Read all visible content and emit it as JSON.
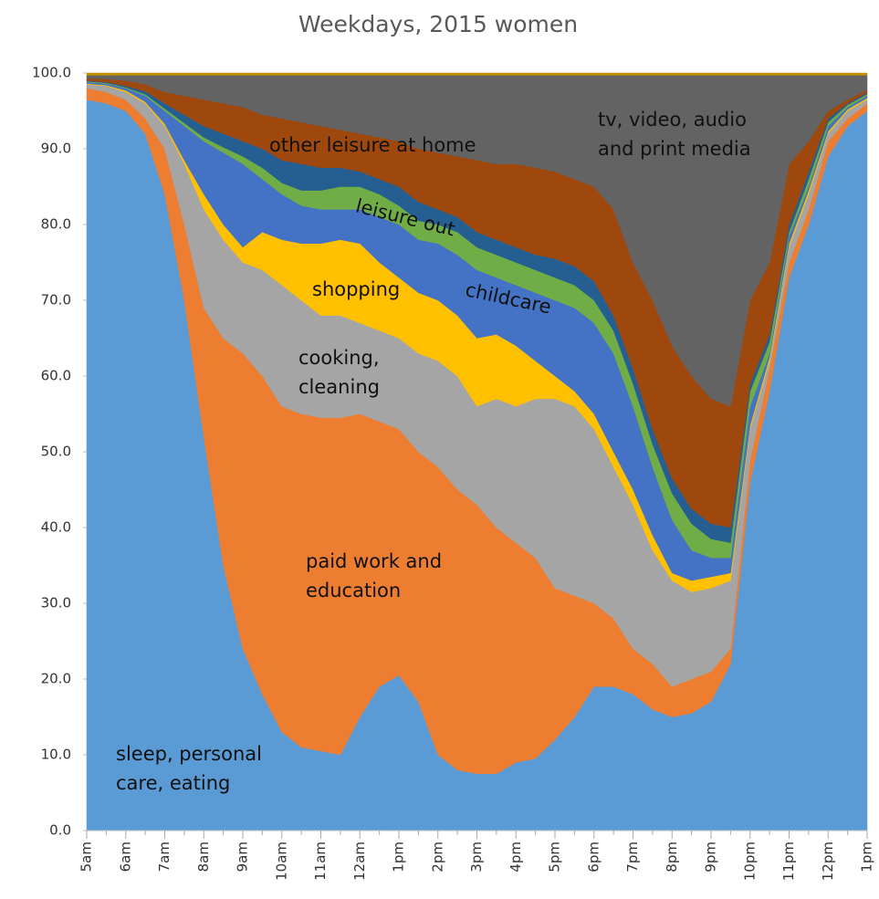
{
  "chart_data": {
    "type": "stacked_area",
    "title": "Weekdays, 2015 women",
    "categories": [
      "5am",
      null,
      "6am",
      null,
      "7am",
      null,
      "8am",
      null,
      "9am",
      null,
      "10am",
      null,
      "11am",
      null,
      "12am",
      null,
      "1pm",
      null,
      "2pm",
      null,
      "3pm",
      null,
      "4pm",
      null,
      "5pm",
      null,
      "6pm",
      null,
      "7pm",
      null,
      "8pm",
      null,
      "9pm",
      null,
      "10pm",
      null,
      "11pm",
      null,
      "12pm",
      null,
      "1pm"
    ],
    "ylim": [
      0,
      100
    ],
    "yticks": [
      {
        "value": 0,
        "label": "0.0"
      },
      {
        "value": 10,
        "label": "10.0"
      },
      {
        "value": 20,
        "label": "20.0"
      },
      {
        "value": 30,
        "label": "30.0"
      },
      {
        "value": 40,
        "label": "40.0"
      },
      {
        "value": 50,
        "label": "50.0"
      },
      {
        "value": 60,
        "label": "60.0"
      },
      {
        "value": 70,
        "label": "70.0"
      },
      {
        "value": 80,
        "label": "80.0"
      },
      {
        "value": 90,
        "label": "90.0"
      },
      {
        "value": 100,
        "label": "100.0"
      }
    ],
    "series": [
      {
        "name": "sleep, personal care, eating",
        "color": "#5b9bd5",
        "values": [
          96.5,
          96,
          95,
          92,
          84,
          70,
          52,
          35,
          24,
          18,
          13,
          11,
          10.5,
          10,
          15,
          19,
          20.5,
          17,
          10,
          8,
          7.5,
          7.5,
          9,
          9.5,
          12,
          15,
          19,
          19,
          18,
          16,
          15,
          15.5,
          17,
          22,
          46,
          58,
          73,
          80,
          89,
          93,
          95
        ]
      },
      {
        "name": "paid work and education",
        "color": "#ed7d31",
        "values": [
          1.5,
          1.5,
          1.5,
          2,
          6,
          10,
          17,
          30,
          39,
          42,
          43,
          44,
          44,
          44.5,
          40,
          35,
          32.5,
          33,
          38,
          37,
          35.5,
          32.5,
          29,
          26.5,
          20,
          16,
          11,
          9,
          6,
          6,
          4,
          4.5,
          4,
          2,
          3,
          3,
          2,
          2,
          2,
          1,
          1
        ]
      },
      {
        "name": "cooking, cleaning",
        "color": "#a5a5a5",
        "values": [
          0.5,
          0.8,
          1,
          2,
          3,
          8,
          13,
          13,
          12,
          14,
          16,
          15,
          13.5,
          13.5,
          12,
          12,
          12,
          13,
          14,
          15,
          13,
          17,
          18,
          21,
          25,
          25,
          23,
          20,
          19,
          15,
          14,
          11.5,
          11,
          9,
          4,
          1,
          2,
          2,
          1,
          1,
          0.5
        ]
      },
      {
        "name": "shopping",
        "color": "#ffc000",
        "values": [
          0.1,
          0.1,
          0.2,
          0.2,
          0.3,
          0.5,
          2,
          2,
          2,
          5,
          6,
          7.5,
          9.5,
          10,
          10.5,
          9,
          8,
          8,
          8,
          8,
          9,
          8.5,
          8,
          5,
          3,
          2,
          2,
          2,
          2,
          2,
          1,
          1.5,
          1.5,
          1,
          0.5,
          0.5,
          0.5,
          0.5,
          0.3,
          0.2,
          0.2
        ]
      },
      {
        "name": "childcare",
        "color": "#4472c4",
        "values": [
          0.2,
          0.2,
          0.3,
          0.8,
          1.7,
          4.5,
          7,
          9.5,
          11,
          7,
          6,
          5,
          4.5,
          4,
          4.5,
          6,
          7,
          7,
          7.5,
          8,
          9,
          7.5,
          8,
          9,
          10,
          11,
          12,
          13,
          11,
          9,
          7,
          4,
          2.5,
          2,
          2.5,
          0.5,
          1,
          0.5,
          0.7,
          0.3,
          0.3
        ]
      },
      {
        "name": "leisure out",
        "color": "#70ad47",
        "values": [
          0.1,
          0.1,
          0.1,
          0.2,
          0.3,
          0.4,
          0.5,
          0.7,
          1,
          1.5,
          1.5,
          2,
          2.5,
          3,
          3,
          3,
          2.5,
          2.5,
          2.5,
          3,
          3,
          3,
          3,
          3,
          3,
          3,
          3,
          3,
          3,
          3,
          3.5,
          3.5,
          2.5,
          2,
          2,
          1.5,
          0.5,
          1,
          0.5,
          0.3,
          0.2
        ]
      },
      {
        "color": "#255e91",
        "values": [
          0.1,
          0.1,
          0.2,
          0.4,
          0.7,
          1.1,
          1.5,
          1.8,
          2,
          2.5,
          3,
          3.5,
          3,
          2.5,
          2,
          2,
          2.5,
          2.5,
          2,
          2,
          2,
          2,
          2,
          2,
          2.5,
          2.5,
          2.5,
          2,
          2,
          2,
          2,
          2,
          2,
          2,
          1,
          1,
          1,
          1,
          0.5,
          0.2,
          0.2
        ]
      },
      {
        "name": "other leisure at home",
        "color": "#9e480e",
        "values": [
          0.3,
          0.4,
          0.7,
          0.9,
          1.5,
          2.5,
          3.5,
          4,
          4.5,
          4.5,
          5.5,
          5.5,
          5.5,
          5,
          5,
          5.5,
          6,
          7,
          7.5,
          8,
          9.5,
          10,
          11,
          11.5,
          11.5,
          11.5,
          12.5,
          14,
          14,
          17,
          17.5,
          17.5,
          16.5,
          16,
          11,
          9.5,
          8,
          4,
          1,
          0.5,
          0.4
        ]
      },
      {
        "name": "tv, video, audio and print media",
        "color": "#636363",
        "values": [
          0.4,
          0.5,
          0.7,
          1.2,
          2.2,
          2.7,
          3.2,
          3.7,
          4.2,
          5.2,
          5.7,
          6.2,
          6.7,
          7.2,
          7.7,
          8.2,
          8.7,
          9.7,
          10.2,
          10.7,
          11.2,
          11.7,
          11.7,
          12.2,
          12.7,
          13.7,
          14.7,
          17.7,
          24.7,
          29.7,
          35.7,
          39.7,
          42.7,
          43.7,
          29.7,
          24.7,
          11.7,
          8.7,
          4.7,
          3.2,
          1.9
        ]
      },
      {
        "color": "#bf9000",
        "values": [
          0.3,
          0.3,
          0.3,
          0.3,
          0.3,
          0.3,
          0.3,
          0.3,
          0.3,
          0.3,
          0.3,
          0.3,
          0.3,
          0.3,
          0.3,
          0.3,
          0.3,
          0.3,
          0.3,
          0.3,
          0.3,
          0.3,
          0.3,
          0.3,
          0.3,
          0.3,
          0.3,
          0.3,
          0.3,
          0.3,
          0.3,
          0.3,
          0.3,
          0.3,
          0.3,
          0.3,
          0.3,
          0.3,
          0.3,
          0.3,
          0.3
        ]
      }
    ],
    "annotations": [
      [
        "other leisure at home"
      ],
      [
        "tv, video, audio",
        "and print media"
      ],
      [
        "leisure out"
      ],
      [
        "shopping"
      ],
      [
        "childcare"
      ],
      [
        "cooking,",
        "cleaning"
      ],
      [
        "paid work and",
        "education"
      ],
      [
        "sleep, personal",
        "care, eating"
      ]
    ]
  }
}
